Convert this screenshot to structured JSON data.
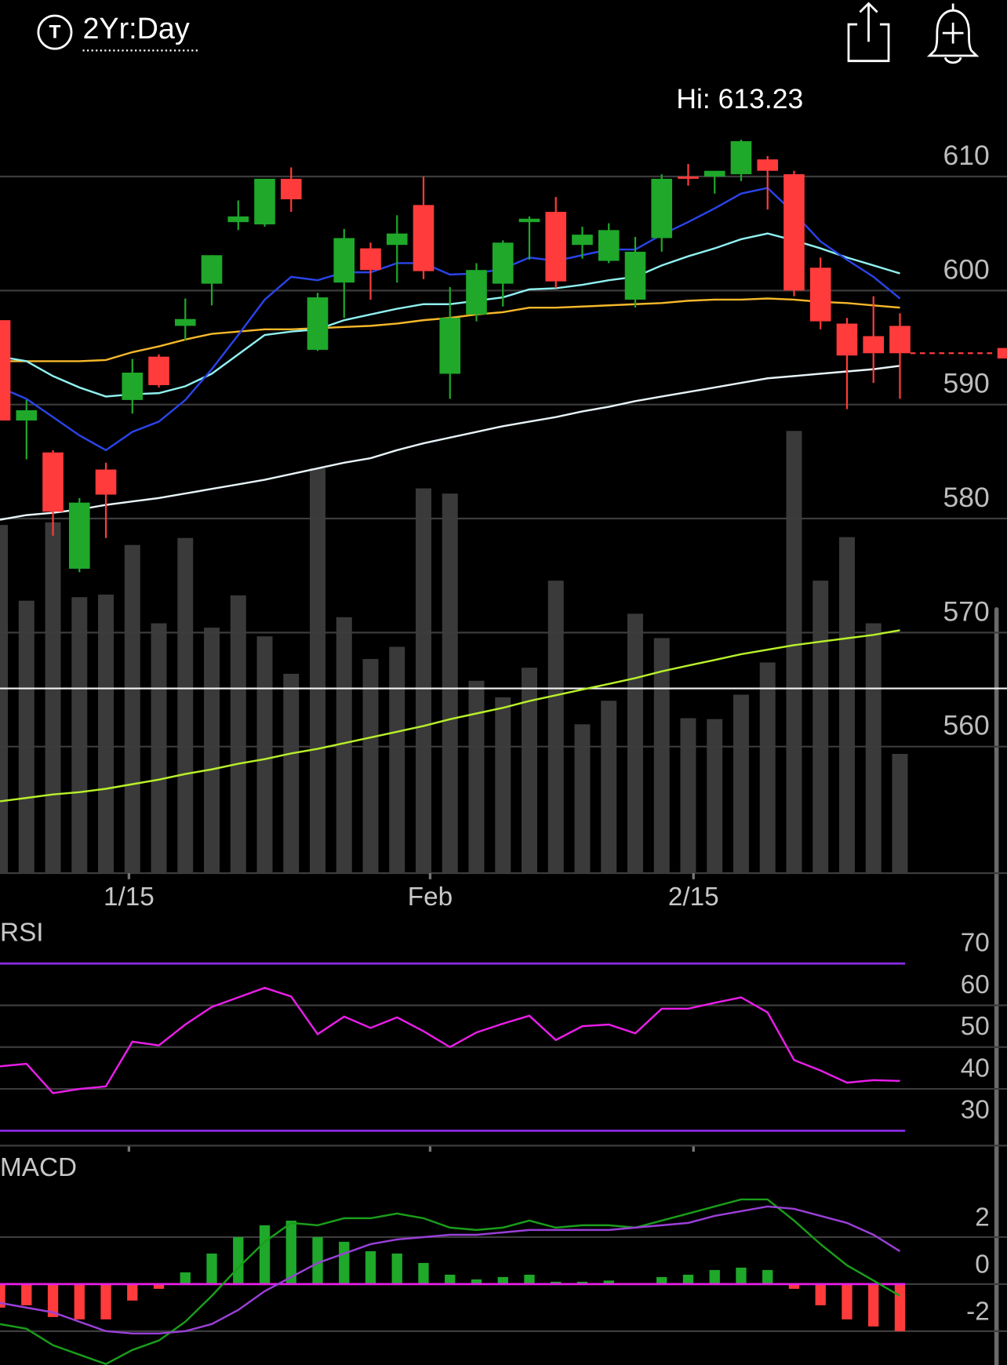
{
  "header": {
    "icon_label": "T",
    "range": "2Yr:Day"
  },
  "chart_data": [
    {
      "type": "candlestick",
      "annotation": "Hi: 613.23",
      "xlim": [
        0,
        34
      ],
      "xticks": [
        {
          "value": 4.87,
          "label": "1/15"
        },
        {
          "value": 16.25,
          "label": "Feb"
        },
        {
          "value": 26.2,
          "label": "2/15"
        }
      ],
      "ylim": [
        548.9,
        620.9
      ],
      "yticks": [
        560,
        570,
        580,
        590,
        600,
        610
      ],
      "grid": true,
      "up_color": "#1fa82a",
      "down_color": "#ff3b3b",
      "open": [
        597.4,
        588.6,
        585.8,
        575.6,
        584.3,
        590.4,
        594.2,
        596.9,
        600.6,
        606.0,
        605.8,
        609.8,
        594.8,
        600.7,
        603.7,
        604.0,
        607.5,
        592.7,
        597.9,
        600.6,
        606.0,
        606.9,
        604.0,
        602.6,
        599.2,
        604.6,
        610.0,
        610.0,
        610.2,
        611.5,
        610.2,
        602.0,
        597.1,
        596.0,
        596.9
      ],
      "high": [
        597.4,
        590.4,
        586.0,
        581.8,
        584.9,
        594.0,
        594.4,
        599.3,
        603.1,
        607.9,
        609.8,
        610.8,
        599.8,
        605.4,
        604.2,
        606.6,
        610.0,
        600.3,
        602.4,
        604.4,
        606.5,
        608.2,
        605.6,
        605.9,
        604.7,
        610.2,
        611.1,
        610.5,
        613.23,
        611.8,
        610.5,
        602.9,
        597.6,
        599.5,
        598.0
      ],
      "low": [
        588.6,
        585.2,
        578.5,
        575.3,
        578.3,
        589.2,
        591.5,
        595.6,
        598.7,
        605.3,
        605.6,
        606.9,
        594.7,
        597.6,
        599.2,
        600.7,
        601.0,
        590.5,
        597.3,
        598.6,
        602.7,
        600.2,
        602.8,
        602.4,
        598.5,
        603.4,
        609.2,
        608.5,
        609.6,
        607.1,
        599.5,
        596.6,
        589.6,
        591.9,
        590.5
      ],
      "close": [
        588.6,
        589.5,
        580.6,
        581.4,
        582.1,
        592.8,
        591.7,
        597.5,
        603.1,
        606.5,
        609.8,
        608.0,
        599.4,
        604.6,
        601.8,
        605.0,
        601.7,
        597.6,
        601.8,
        604.2,
        606.3,
        600.8,
        604.9,
        605.3,
        603.4,
        609.8,
        609.8,
        610.5,
        613.1,
        610.5,
        600.0,
        597.3,
        594.3,
        594.5,
        594.5
      ],
      "last_price_line": true,
      "reference_line": 565.1,
      "overlays": [
        {
          "color": "#b8f02a",
          "values": [
            555.2,
            555.5,
            555.8,
            556.0,
            556.3,
            556.7,
            557.1,
            557.6,
            558.0,
            558.5,
            558.9,
            559.4,
            559.8,
            560.3,
            560.8,
            561.3,
            561.8,
            562.4,
            562.9,
            563.4,
            564.0,
            564.5,
            565.0,
            565.5,
            566.0,
            566.6,
            567.1,
            567.6,
            568.1,
            568.5,
            568.9,
            569.2,
            569.5,
            569.8,
            570.2
          ]
        },
        {
          "color": "#e8f4f8",
          "values": [
            579.9,
            580.3,
            580.5,
            580.8,
            581.2,
            581.5,
            581.8,
            582.2,
            582.6,
            583.0,
            583.4,
            583.9,
            584.4,
            584.9,
            585.3,
            586.0,
            586.6,
            587.1,
            587.6,
            588.1,
            588.5,
            588.9,
            589.4,
            589.8,
            590.3,
            590.7,
            591.1,
            591.5,
            591.9,
            592.3,
            592.5,
            592.7,
            592.9,
            593.1,
            593.4
          ]
        },
        {
          "color": "#f5b82a",
          "values": [
            593.8,
            593.8,
            593.8,
            593.8,
            593.9,
            594.6,
            595.1,
            595.7,
            596.2,
            596.4,
            596.6,
            596.6,
            596.7,
            596.8,
            596.9,
            597.1,
            597.4,
            597.6,
            597.9,
            598.1,
            598.5,
            598.5,
            598.6,
            598.7,
            598.8,
            598.9,
            599.1,
            599.2,
            599.2,
            599.3,
            599.2,
            599.0,
            598.9,
            598.7,
            598.5
          ]
        },
        {
          "color": "#90f0f0",
          "values": [
            594.2,
            593.8,
            592.5,
            591.5,
            590.7,
            590.9,
            591.0,
            591.6,
            592.7,
            594.4,
            596.1,
            596.4,
            596.6,
            597.4,
            597.9,
            598.4,
            598.8,
            598.8,
            599.1,
            599.4,
            600.1,
            600.2,
            600.5,
            600.9,
            601.2,
            602.2,
            603.0,
            603.7,
            604.5,
            605.0,
            604.4,
            603.7,
            602.9,
            602.2,
            601.5
          ]
        },
        {
          "color": "#2a44e8",
          "values": [
            591.5,
            590.5,
            588.9,
            587.3,
            586.0,
            587.6,
            588.5,
            590.4,
            593.1,
            596.1,
            599.2,
            601.2,
            600.9,
            601.6,
            601.6,
            602.4,
            602.4,
            601.4,
            601.5,
            601.9,
            602.9,
            602.6,
            603.1,
            603.6,
            603.6,
            604.9,
            606.0,
            607.2,
            608.5,
            609.0,
            606.8,
            604.3,
            602.7,
            601.2,
            599.3
          ]
        }
      ],
      "volume": {
        "color": "#3a3a3a",
        "ylim": [
          0,
          800
        ],
        "values": [
          400,
          313,
          403,
          317,
          320,
          377,
          287,
          385,
          282,
          319,
          272,
          229,
          465,
          294,
          246,
          260,
          442,
          436,
          221,
          202,
          236,
          336,
          171,
          198,
          298,
          270,
          178,
          177,
          205,
          242,
          508,
          336,
          386,
          287,
          137
        ]
      }
    },
    {
      "type": "line",
      "title": "RSI",
      "xlim": [
        0,
        34
      ],
      "ylim": [
        25.6,
        73.5
      ],
      "yticks": [
        30,
        40,
        50,
        60,
        70
      ],
      "grid": true,
      "levels": [
        30,
        70
      ],
      "level_color": "#8a2be2",
      "series": [
        {
          "color": "#e81ee8",
          "values": [
            45.4,
            46.0,
            39.0,
            40.0,
            40.6,
            51.3,
            50.4,
            55.4,
            59.6,
            61.9,
            64.2,
            62.1,
            53.1,
            57.3,
            54.6,
            57.1,
            53.8,
            50.0,
            53.5,
            55.6,
            57.5,
            51.7,
            55.0,
            55.4,
            53.3,
            59.2,
            59.2,
            60.6,
            61.9,
            58.3,
            46.9,
            44.4,
            41.5,
            42.1,
            41.9
          ]
        }
      ]
    },
    {
      "type": "macd",
      "title": "MACD",
      "xlim": [
        0,
        34
      ],
      "ylim": [
        -3.44,
        3.89
      ],
      "yticks": [
        -2,
        0,
        2
      ],
      "grid": true,
      "zero_line_color": "#e81ee8",
      "up_color": "#1fa82a",
      "down_color": "#ff3b3b",
      "histogram": [
        -1.0,
        -0.9,
        -1.4,
        -1.5,
        -1.5,
        -0.7,
        -0.2,
        0.5,
        1.3,
        2.0,
        2.5,
        2.7,
        2.0,
        1.8,
        1.4,
        1.3,
        0.9,
        0.4,
        0.2,
        0.3,
        0.4,
        0.1,
        0.1,
        0.15,
        0,
        0.3,
        0.4,
        0.6,
        0.7,
        0.6,
        -0.2,
        -0.9,
        -1.5,
        -1.8,
        -2.0
      ],
      "series": [
        {
          "color": "#1a9e1a",
          "values": [
            -1.7,
            -1.9,
            -2.6,
            -3.0,
            -3.4,
            -2.8,
            -2.4,
            -1.6,
            -0.5,
            0.7,
            1.8,
            2.6,
            2.5,
            2.8,
            2.8,
            3.0,
            2.8,
            2.4,
            2.3,
            2.4,
            2.7,
            2.4,
            2.5,
            2.5,
            2.4,
            2.7,
            3.0,
            3.3,
            3.6,
            3.6,
            2.7,
            1.7,
            0.8,
            0.15,
            -0.5
          ]
        },
        {
          "color": "#9a40d8",
          "values": [
            -0.8,
            -1.0,
            -1.2,
            -1.6,
            -2.0,
            -2.1,
            -2.1,
            -2.0,
            -1.7,
            -1.1,
            -0.3,
            0.3,
            0.9,
            1.3,
            1.7,
            1.9,
            2.0,
            2.1,
            2.1,
            2.2,
            2.3,
            2.3,
            2.3,
            2.3,
            2.4,
            2.5,
            2.6,
            2.9,
            3.1,
            3.3,
            3.2,
            2.9,
            2.6,
            2.1,
            1.4
          ]
        }
      ]
    }
  ]
}
